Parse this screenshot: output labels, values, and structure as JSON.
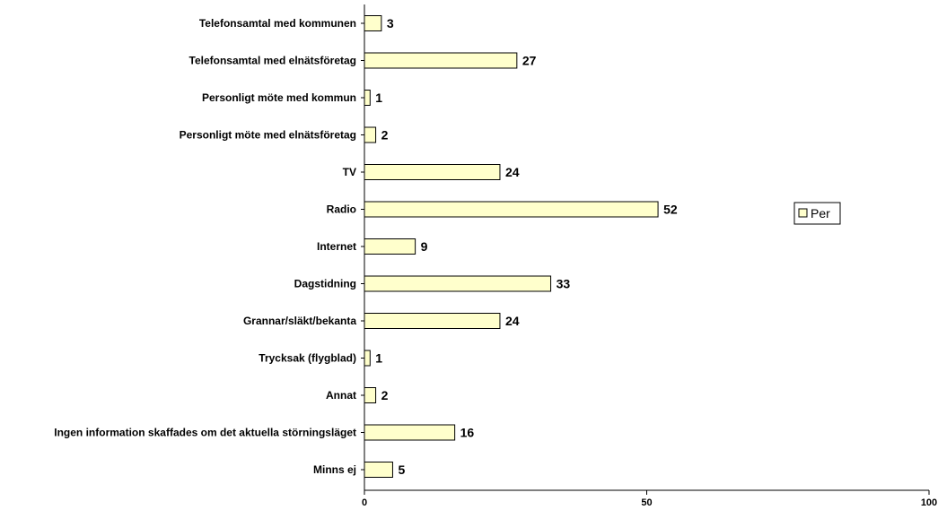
{
  "chart_data": {
    "type": "bar",
    "orientation": "horizontal",
    "categories": [
      "Telefonsamtal med kommunen",
      "Telefonsamtal med elnätsföretag",
      "Personligt möte med kommun",
      "Personligt möte med elnätsföretag",
      "TV",
      "Radio",
      "Internet",
      "Dagstidning",
      "Grannar/släkt/bekanta",
      "Trycksak (flygblad)",
      "Annat",
      "Ingen information skaffades om det aktuella störningsläget",
      "Minns ej"
    ],
    "series": [
      {
        "name": "Per",
        "values": [
          3,
          27,
          1,
          2,
          24,
          52,
          9,
          33,
          24,
          1,
          2,
          16,
          5
        ]
      }
    ],
    "xlim": [
      0,
      100
    ],
    "x_ticks": [
      "0",
      "50",
      "100"
    ],
    "grid": false,
    "legend_position": "right",
    "colors": {
      "bar_fill": "#FFFFCC",
      "bar_stroke": "#000000",
      "axis": "#000000"
    }
  }
}
